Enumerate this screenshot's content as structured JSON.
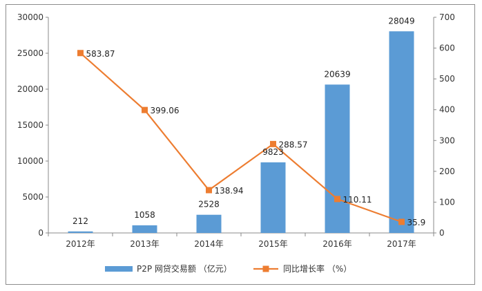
{
  "chart_data": {
    "type": "bar",
    "categories": [
      "2012年",
      "2013年",
      "2014年",
      "2015年",
      "2016年",
      "2017年"
    ],
    "series": [
      {
        "name": "P2P 网贷交易额 （亿元）",
        "chart_type": "bar",
        "axis": "left",
        "color": "#5b9bd5",
        "values": [
          212,
          1058,
          2528,
          9823,
          20639,
          28049
        ],
        "labels": [
          "212",
          "1058",
          "2528",
          "9823",
          "20639",
          "28049"
        ]
      },
      {
        "name": "同比增长率 （%）",
        "chart_type": "line",
        "axis": "right",
        "color": "#ed7d31",
        "marker": "square",
        "values": [
          583.87,
          399.06,
          138.94,
          288.57,
          110.11,
          35.9
        ],
        "labels": [
          "583.87",
          "399.06",
          "138.94",
          "288.57",
          "110.11",
          "35.9"
        ]
      }
    ],
    "y_left": {
      "min": 0,
      "max": 30000,
      "ticks": [
        0,
        5000,
        10000,
        15000,
        20000,
        25000,
        30000
      ],
      "tick_labels": [
        "0",
        "5000",
        "10000",
        "15000",
        "20000",
        "25000",
        "30000"
      ]
    },
    "y_right": {
      "min": 0,
      "max": 700,
      "ticks": [
        0,
        100,
        200,
        300,
        400,
        500,
        600,
        700
      ],
      "tick_labels": [
        "0",
        "100",
        "200",
        "300",
        "400",
        "500",
        "600",
        "700"
      ]
    },
    "grid": false,
    "legend": "bottom",
    "title": "",
    "xlabel": "",
    "ylabel": ""
  }
}
